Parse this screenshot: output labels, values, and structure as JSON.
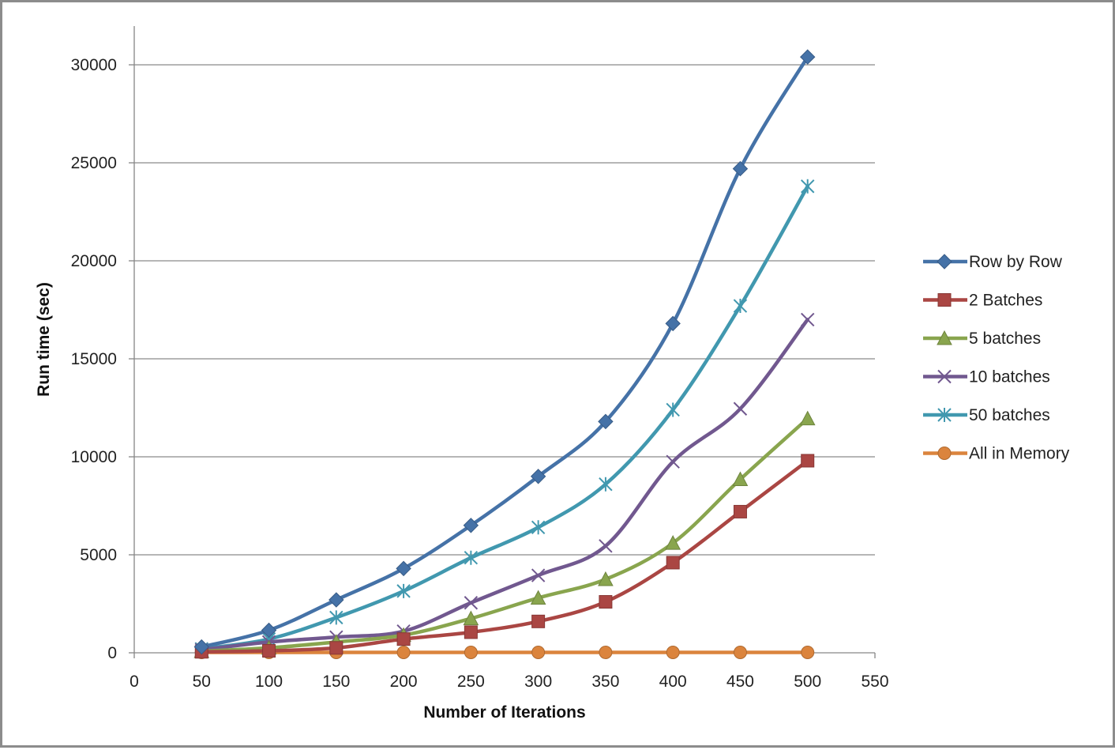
{
  "chart_data": {
    "type": "line",
    "title": "",
    "xlabel": "Number of Iterations",
    "ylabel": "Run time (sec)",
    "xlim": [
      0,
      550
    ],
    "ylim": [
      0,
      30000
    ],
    "x_ticks": [
      "0",
      "50",
      "100",
      "150",
      "200",
      "250",
      "300",
      "350",
      "400",
      "450",
      "500",
      "550"
    ],
    "y_ticks": [
      "0",
      "5000",
      "10000",
      "15000",
      "20000",
      "25000",
      "30000"
    ],
    "grid": true,
    "legend_position": "right",
    "x": [
      50,
      100,
      150,
      200,
      250,
      300,
      350,
      400,
      450,
      500
    ],
    "series": [
      {
        "name": "Row by Row",
        "color": "#4572A7",
        "marker": "diamond",
        "values": [
          300,
          1150,
          2700,
          4300,
          6500,
          9000,
          11800,
          16800,
          24700,
          30400
        ]
      },
      {
        "name": "2 Batches",
        "color": "#AA4643",
        "marker": "square",
        "values": [
          50,
          100,
          250,
          700,
          1050,
          1600,
          2600,
          4600,
          7200,
          9800
        ]
      },
      {
        "name": "5 batches",
        "color": "#89A54E",
        "marker": "triangle",
        "values": [
          80,
          250,
          550,
          900,
          1750,
          2800,
          3750,
          5600,
          8850,
          11950
        ]
      },
      {
        "name": "10 batches",
        "color": "#71588F",
        "marker": "x",
        "values": [
          150,
          550,
          800,
          1100,
          2550,
          3950,
          5450,
          9750,
          12450,
          17000
        ]
      },
      {
        "name": "50 batches",
        "color": "#4198AF",
        "marker": "star",
        "values": [
          200,
          700,
          1800,
          3150,
          4850,
          6400,
          8600,
          12400,
          17700,
          23800
        ]
      },
      {
        "name": "All in Memory",
        "color": "#DB843D",
        "marker": "circle",
        "values": [
          20,
          20,
          20,
          20,
          20,
          20,
          20,
          20,
          20,
          20
        ]
      }
    ]
  }
}
